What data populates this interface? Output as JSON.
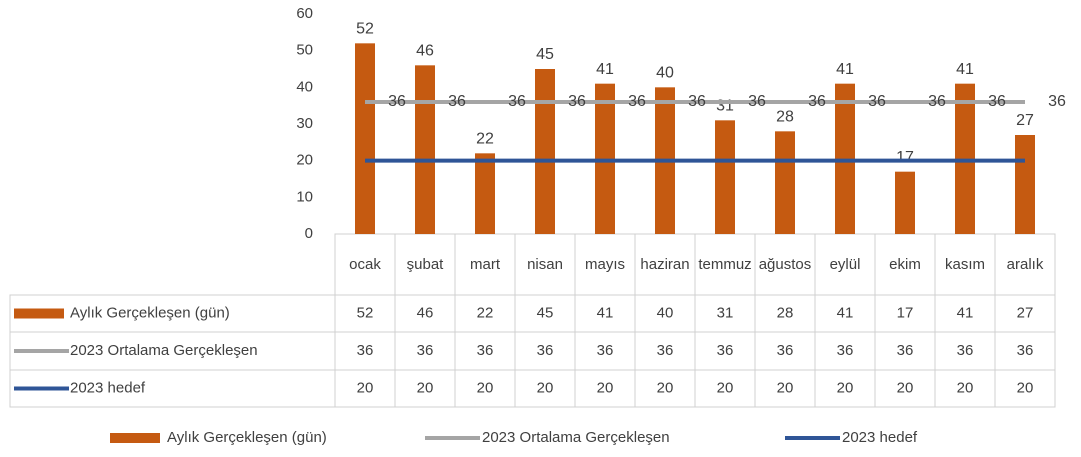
{
  "chart_data": {
    "type": "bar",
    "categories": [
      "ocak",
      "şubat",
      "mart",
      "nisan",
      "mayıs",
      "haziran",
      "temmuz",
      "ağustos",
      "eylül",
      "ekim",
      "kasım",
      "aralık"
    ],
    "series": [
      {
        "name": "Aylık Gerçekleşen (gün)",
        "type": "bar",
        "color": "#c55a11",
        "values": [
          52,
          46,
          22,
          45,
          41,
          40,
          31,
          28,
          41,
          17,
          41,
          27
        ]
      },
      {
        "name": "2023 Ortalama Gerçekleşen",
        "type": "line",
        "color": "#a5a5a5",
        "values": [
          36,
          36,
          36,
          36,
          36,
          36,
          36,
          36,
          36,
          36,
          36,
          36
        ]
      },
      {
        "name": "2023 hedef",
        "type": "line",
        "color": "#2f5597",
        "values": [
          20,
          20,
          20,
          20,
          20,
          20,
          20,
          20,
          20,
          20,
          20,
          20
        ]
      }
    ],
    "ylim": [
      0,
      60
    ],
    "yticks": [
      0,
      10,
      20,
      30,
      40,
      50,
      60
    ],
    "legend": "bottom"
  }
}
